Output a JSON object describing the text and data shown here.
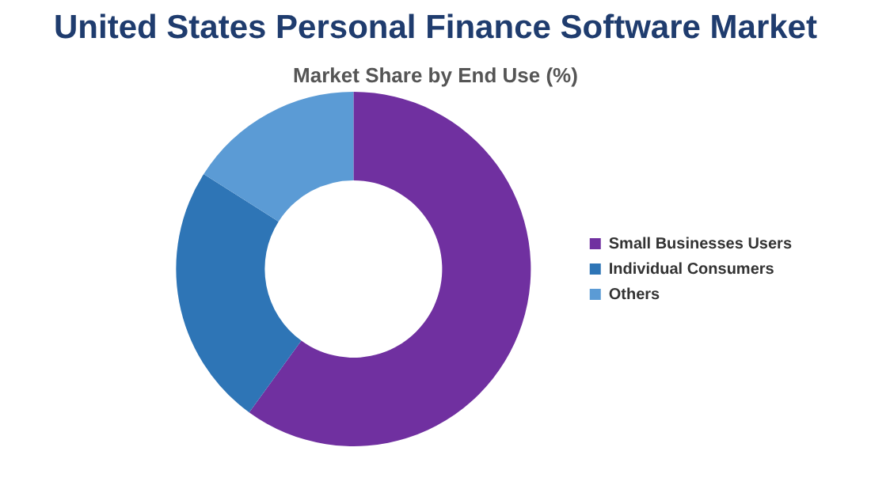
{
  "chart_data": {
    "type": "donut",
    "title": "United States Personal Finance Software Market",
    "subtitle": "Market Share by End Use (%)",
    "categories": [
      "Small Businesses Users",
      "Individual Consumers",
      "Others"
    ],
    "values": [
      60,
      24,
      16
    ],
    "colors": [
      "#7030a0",
      "#2e75b6",
      "#5b9bd5"
    ],
    "legend": "right"
  }
}
